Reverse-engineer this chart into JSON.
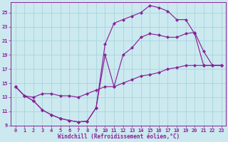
{
  "xlabel": "Windchill (Refroidissement éolien,°C)",
  "bg_color": "#cbe9ef",
  "line_color": "#882299",
  "grid_color": "#a8d4dc",
  "xmin": -0.5,
  "xmax": 23.5,
  "ymin": 9,
  "ymax": 26.5,
  "yticks": [
    9,
    11,
    13,
    15,
    17,
    19,
    21,
    23,
    25
  ],
  "xticks": [
    0,
    1,
    2,
    3,
    4,
    5,
    6,
    7,
    8,
    9,
    10,
    11,
    12,
    13,
    14,
    15,
    16,
    17,
    18,
    19,
    20,
    21,
    22,
    23
  ],
  "curves": [
    {
      "x": [
        0,
        1,
        2,
        3,
        4,
        5,
        6,
        7,
        8,
        9,
        10,
        11,
        12,
        13,
        14,
        15,
        16,
        17,
        18,
        19,
        20,
        21,
        22,
        23
      ],
      "y": [
        14.5,
        13.2,
        12.5,
        11.2,
        10.5,
        10.0,
        9.7,
        9.5,
        9.6,
        11.5,
        20.5,
        23.5,
        24.0,
        24.5,
        25.0,
        26.0,
        25.7,
        25.2,
        24.0,
        24.0,
        22.0,
        17.5,
        17.5,
        17.5
      ]
    },
    {
      "x": [
        0,
        1,
        2,
        3,
        4,
        5,
        6,
        7,
        8,
        9,
        10,
        11,
        12,
        13,
        14,
        15,
        16,
        17,
        18,
        19,
        20,
        21,
        22,
        23
      ],
      "y": [
        14.5,
        13.2,
        12.5,
        11.2,
        10.5,
        10.0,
        9.7,
        9.5,
        9.6,
        11.5,
        19.0,
        14.5,
        19.0,
        20.0,
        21.5,
        22.0,
        21.8,
        21.5,
        21.5,
        22.0,
        22.2,
        19.5,
        17.5,
        17.5
      ]
    },
    {
      "x": [
        0,
        1,
        2,
        3,
        4,
        5,
        6,
        7,
        8,
        9,
        10,
        11,
        12,
        13,
        14,
        15,
        16,
        17,
        18,
        19,
        20,
        21,
        22,
        23
      ],
      "y": [
        14.5,
        13.2,
        13.0,
        13.5,
        13.5,
        13.2,
        13.2,
        13.0,
        13.5,
        14.0,
        14.5,
        14.5,
        15.0,
        15.5,
        16.0,
        16.2,
        16.5,
        17.0,
        17.2,
        17.5,
        17.5,
        17.5,
        17.5,
        17.5
      ]
    }
  ]
}
